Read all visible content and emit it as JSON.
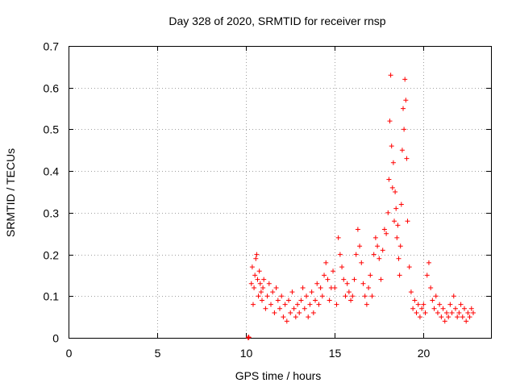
{
  "chart_data": {
    "type": "scatter",
    "title": "Day 328 of 2020, SRMTID for receiver rnsp",
    "xlabel": "GPS time / hours",
    "ylabel": "SRMTID / TECUs",
    "xlim": [
      0,
      23.8
    ],
    "ylim": [
      0,
      0.7
    ],
    "xticks": [
      0,
      5,
      10,
      15,
      20
    ],
    "yticks": [
      0,
      0.1,
      0.2,
      0.3,
      0.4,
      0.5,
      0.6,
      0.7
    ],
    "xtick_labels": [
      "0",
      "5",
      "10",
      "15",
      "20"
    ],
    "ytick_labels": [
      "0",
      "0.1",
      "0.2",
      "0.3",
      "0.4",
      "0.5",
      "0.6",
      "0.7"
    ],
    "grid": true,
    "marker": "+",
    "series": [
      {
        "name": "rnsp",
        "color": "#ff0000",
        "x": [
          10.12,
          10.14,
          10.16,
          10.3,
          10.35,
          10.4,
          10.45,
          10.5,
          10.55,
          10.6,
          10.65,
          10.7,
          10.75,
          10.8,
          10.85,
          10.9,
          10.95,
          11.0,
          11.1,
          11.2,
          11.3,
          11.4,
          11.5,
          11.6,
          11.7,
          11.8,
          11.9,
          12.0,
          12.1,
          12.2,
          12.3,
          12.4,
          12.5,
          12.6,
          12.7,
          12.8,
          12.9,
          13.0,
          13.1,
          13.2,
          13.3,
          13.4,
          13.5,
          13.6,
          13.7,
          13.8,
          13.9,
          14.0,
          14.1,
          14.2,
          14.3,
          14.4,
          14.5,
          14.6,
          14.7,
          14.8,
          14.9,
          15.0,
          15.1,
          15.2,
          15.3,
          15.4,
          15.5,
          15.6,
          15.7,
          15.8,
          15.9,
          16.0,
          16.1,
          16.2,
          16.3,
          16.4,
          16.5,
          16.6,
          16.7,
          16.8,
          16.9,
          17.0,
          17.1,
          17.2,
          17.3,
          17.4,
          17.5,
          17.6,
          17.7,
          17.8,
          17.9,
          18.0,
          18.05,
          18.1,
          18.15,
          18.2,
          18.25,
          18.3,
          18.35,
          18.4,
          18.45,
          18.5,
          18.55,
          18.6,
          18.65,
          18.7,
          18.75,
          18.8,
          18.85,
          18.9,
          18.95,
          19.0,
          19.05,
          19.1,
          19.2,
          19.3,
          19.4,
          19.5,
          19.6,
          19.7,
          19.8,
          19.9,
          20.0,
          20.1,
          20.2,
          20.3,
          20.4,
          20.5,
          20.6,
          20.7,
          20.8,
          20.9,
          21.0,
          21.1,
          21.2,
          21.3,
          21.4,
          21.5,
          21.6,
          21.7,
          21.8,
          21.9,
          22.0,
          22.1,
          22.2,
          22.3,
          22.4,
          22.5,
          22.6,
          22.7,
          22.8
        ],
        "y": [
          0.0,
          0.002,
          0.001,
          0.13,
          0.17,
          0.08,
          0.12,
          0.15,
          0.19,
          0.2,
          0.14,
          0.1,
          0.16,
          0.13,
          0.11,
          0.09,
          0.12,
          0.14,
          0.07,
          0.1,
          0.13,
          0.08,
          0.11,
          0.06,
          0.12,
          0.09,
          0.07,
          0.1,
          0.05,
          0.08,
          0.04,
          0.09,
          0.06,
          0.11,
          0.07,
          0.05,
          0.08,
          0.06,
          0.09,
          0.12,
          0.07,
          0.1,
          0.05,
          0.08,
          0.11,
          0.06,
          0.09,
          0.13,
          0.08,
          0.12,
          0.1,
          0.15,
          0.18,
          0.14,
          0.09,
          0.12,
          0.16,
          0.12,
          0.08,
          0.24,
          0.2,
          0.17,
          0.14,
          0.1,
          0.13,
          0.11,
          0.09,
          0.1,
          0.14,
          0.2,
          0.26,
          0.22,
          0.18,
          0.13,
          0.1,
          0.08,
          0.12,
          0.15,
          0.1,
          0.2,
          0.24,
          0.22,
          0.19,
          0.14,
          0.21,
          0.26,
          0.25,
          0.3,
          0.38,
          0.52,
          0.63,
          0.46,
          0.36,
          0.42,
          0.28,
          0.35,
          0.31,
          0.24,
          0.27,
          0.19,
          0.15,
          0.22,
          0.32,
          0.45,
          0.55,
          0.5,
          0.62,
          0.57,
          0.43,
          0.28,
          0.17,
          0.11,
          0.07,
          0.09,
          0.06,
          0.08,
          0.05,
          0.07,
          0.08,
          0.06,
          0.15,
          0.18,
          0.12,
          0.09,
          0.07,
          0.1,
          0.06,
          0.08,
          0.05,
          0.07,
          0.04,
          0.06,
          0.05,
          0.08,
          0.06,
          0.1,
          0.07,
          0.05,
          0.06,
          0.08,
          0.05,
          0.07,
          0.04,
          0.06,
          0.05,
          0.07,
          0.06
        ]
      }
    ]
  }
}
